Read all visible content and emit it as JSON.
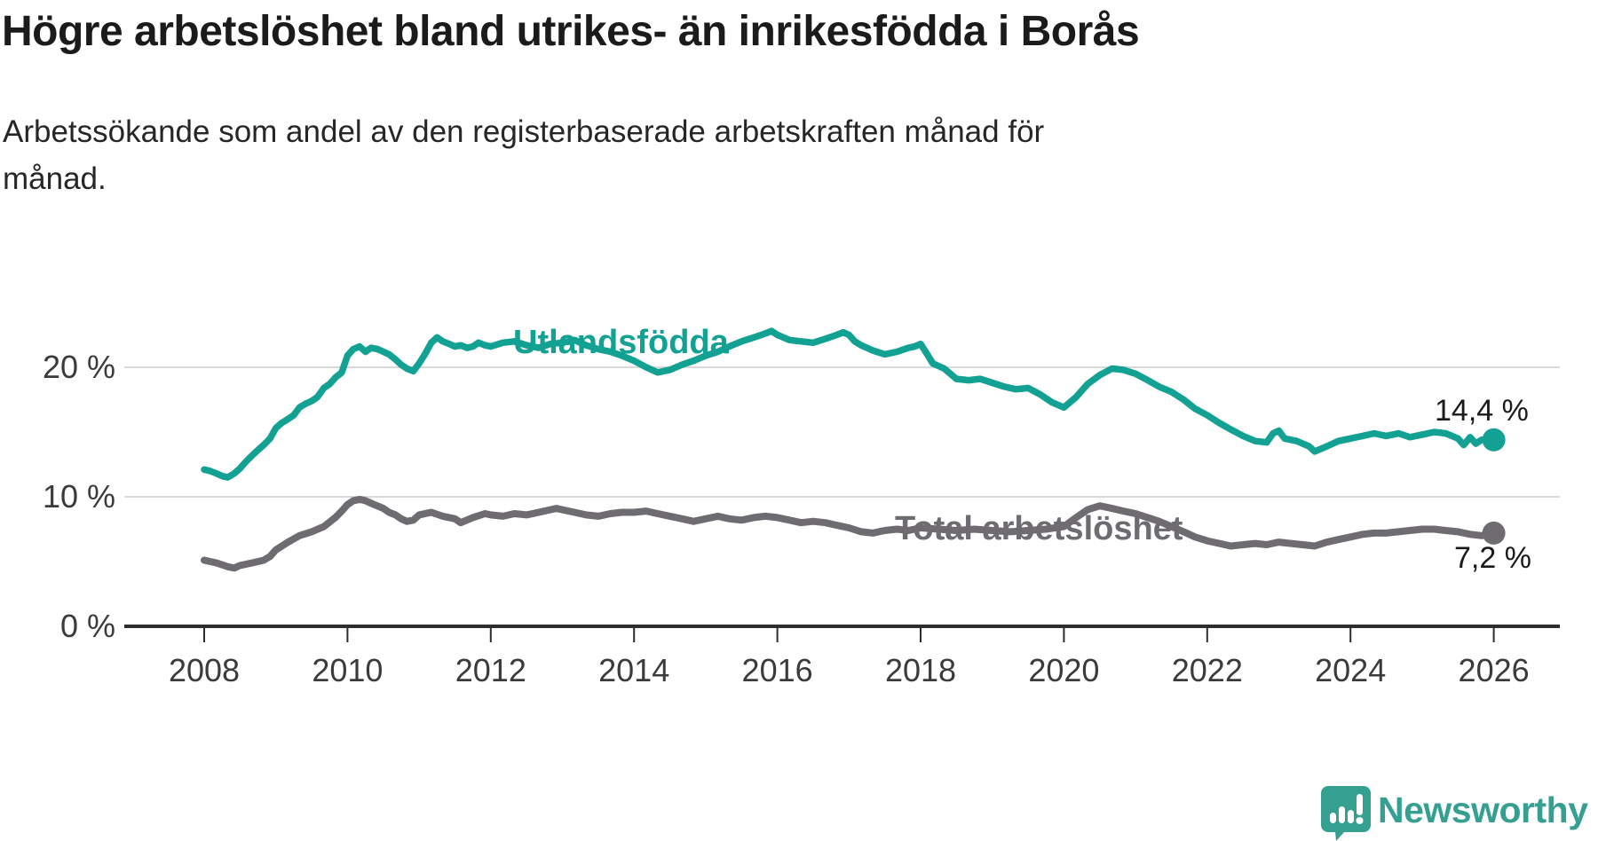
{
  "header": {
    "title": "Högre arbetslöshet bland utrikes- än inrikesfödda i Borås",
    "subtitle_lines": [
      "Arbetssökande som andel av den registerbaserade arbetskraften månad för",
      "månad."
    ]
  },
  "chart_data": {
    "type": "line",
    "title": "Högre arbetslöshet bland utrikes- än inrikesfödda i Borås",
    "subtitle": "Arbetssökande som andel av den registerbaserade arbetskraften månad för månad.",
    "xlabel": "",
    "ylabel": "",
    "grid": "horizontal",
    "legend_position": "inline-labels",
    "x_axis": {
      "range": [
        2007.6,
        2027.0
      ],
      "ticks": [
        {
          "year": 2008,
          "label": "2008"
        },
        {
          "year": 2010,
          "label": "2010"
        },
        {
          "year": 2012,
          "label": "2012"
        },
        {
          "year": 2014,
          "label": "2014"
        },
        {
          "year": 2016,
          "label": "2016"
        },
        {
          "year": 2018,
          "label": "2018"
        },
        {
          "year": 2020,
          "label": "2020"
        },
        {
          "year": 2022,
          "label": "2022"
        },
        {
          "year": 2024,
          "label": "2024"
        },
        {
          "year": 2026,
          "label": "2026"
        }
      ]
    },
    "y_axis": {
      "range": [
        0,
        24
      ],
      "unit": "%",
      "ticks": [
        {
          "value": 0,
          "label": "0 %"
        },
        {
          "value": 10,
          "label": "10 %"
        },
        {
          "value": 20,
          "label": "20 %"
        }
      ]
    },
    "colors": {
      "grid": "#d9d9d9",
      "axis": "#2d2d2d",
      "tick_text": "#3b3b3b"
    },
    "series": [
      {
        "name": "Utlandsfödda",
        "color": "#12a192",
        "end_label": "14,4 %",
        "end_value": 14.4,
        "points": [
          [
            2008.0,
            12.1
          ],
          [
            2008.08,
            12.0
          ],
          [
            2008.17,
            11.8
          ],
          [
            2008.25,
            11.6
          ],
          [
            2008.33,
            11.5
          ],
          [
            2008.42,
            11.8
          ],
          [
            2008.5,
            12.2
          ],
          [
            2008.58,
            12.7
          ],
          [
            2008.67,
            13.2
          ],
          [
            2008.75,
            13.6
          ],
          [
            2008.83,
            14.0
          ],
          [
            2008.92,
            14.5
          ],
          [
            2009.0,
            15.3
          ],
          [
            2009.08,
            15.7
          ],
          [
            2009.17,
            16.0
          ],
          [
            2009.25,
            16.3
          ],
          [
            2009.33,
            16.9
          ],
          [
            2009.42,
            17.2
          ],
          [
            2009.5,
            17.4
          ],
          [
            2009.58,
            17.7
          ],
          [
            2009.67,
            18.4
          ],
          [
            2009.75,
            18.7
          ],
          [
            2009.83,
            19.2
          ],
          [
            2009.92,
            19.6
          ],
          [
            2010.0,
            20.9
          ],
          [
            2010.08,
            21.4
          ],
          [
            2010.17,
            21.6
          ],
          [
            2010.25,
            21.2
          ],
          [
            2010.33,
            21.5
          ],
          [
            2010.42,
            21.4
          ],
          [
            2010.5,
            21.2
          ],
          [
            2010.58,
            21.0
          ],
          [
            2010.67,
            20.6
          ],
          [
            2010.75,
            20.2
          ],
          [
            2010.83,
            19.9
          ],
          [
            2010.92,
            19.7
          ],
          [
            2011.0,
            20.3
          ],
          [
            2011.08,
            21.0
          ],
          [
            2011.17,
            21.9
          ],
          [
            2011.25,
            22.3
          ],
          [
            2011.33,
            22.0
          ],
          [
            2011.42,
            21.8
          ],
          [
            2011.5,
            21.6
          ],
          [
            2011.58,
            21.7
          ],
          [
            2011.67,
            21.5
          ],
          [
            2011.75,
            21.6
          ],
          [
            2011.83,
            21.9
          ],
          [
            2011.92,
            21.7
          ],
          [
            2012.0,
            21.6
          ],
          [
            2012.17,
            21.9
          ],
          [
            2012.33,
            22.0
          ],
          [
            2012.5,
            21.7
          ],
          [
            2012.67,
            21.5
          ],
          [
            2012.83,
            21.8
          ],
          [
            2013.0,
            21.9
          ],
          [
            2013.17,
            22.1
          ],
          [
            2013.33,
            21.7
          ],
          [
            2013.5,
            21.4
          ],
          [
            2013.67,
            21.2
          ],
          [
            2013.83,
            20.9
          ],
          [
            2014.0,
            20.5
          ],
          [
            2014.17,
            20.0
          ],
          [
            2014.33,
            19.6
          ],
          [
            2014.5,
            19.8
          ],
          [
            2014.67,
            20.2
          ],
          [
            2014.83,
            20.5
          ],
          [
            2015.0,
            20.9
          ],
          [
            2015.17,
            21.2
          ],
          [
            2015.33,
            21.6
          ],
          [
            2015.5,
            22.0
          ],
          [
            2015.67,
            22.3
          ],
          [
            2015.83,
            22.6
          ],
          [
            2015.92,
            22.8
          ],
          [
            2016.0,
            22.5
          ],
          [
            2016.17,
            22.1
          ],
          [
            2016.33,
            22.0
          ],
          [
            2016.5,
            21.9
          ],
          [
            2016.67,
            22.2
          ],
          [
            2016.83,
            22.5
          ],
          [
            2016.92,
            22.7
          ],
          [
            2017.0,
            22.5
          ],
          [
            2017.08,
            22.0
          ],
          [
            2017.17,
            21.7
          ],
          [
            2017.33,
            21.3
          ],
          [
            2017.5,
            21.0
          ],
          [
            2017.67,
            21.2
          ],
          [
            2017.83,
            21.5
          ],
          [
            2017.92,
            21.6
          ],
          [
            2018.0,
            21.8
          ],
          [
            2018.08,
            21.1
          ],
          [
            2018.17,
            20.3
          ],
          [
            2018.33,
            19.9
          ],
          [
            2018.5,
            19.1
          ],
          [
            2018.67,
            19.0
          ],
          [
            2018.83,
            19.1
          ],
          [
            2019.0,
            18.8
          ],
          [
            2019.17,
            18.5
          ],
          [
            2019.33,
            18.3
          ],
          [
            2019.5,
            18.4
          ],
          [
            2019.67,
            17.9
          ],
          [
            2019.83,
            17.3
          ],
          [
            2020.0,
            16.9
          ],
          [
            2020.17,
            17.7
          ],
          [
            2020.33,
            18.7
          ],
          [
            2020.5,
            19.4
          ],
          [
            2020.67,
            19.9
          ],
          [
            2020.83,
            19.8
          ],
          [
            2021.0,
            19.5
          ],
          [
            2021.17,
            19.0
          ],
          [
            2021.33,
            18.5
          ],
          [
            2021.5,
            18.1
          ],
          [
            2021.67,
            17.5
          ],
          [
            2021.83,
            16.8
          ],
          [
            2022.0,
            16.3
          ],
          [
            2022.17,
            15.7
          ],
          [
            2022.33,
            15.2
          ],
          [
            2022.5,
            14.7
          ],
          [
            2022.67,
            14.3
          ],
          [
            2022.83,
            14.2
          ],
          [
            2022.92,
            14.9
          ],
          [
            2023.0,
            15.1
          ],
          [
            2023.08,
            14.5
          ],
          [
            2023.25,
            14.3
          ],
          [
            2023.42,
            13.9
          ],
          [
            2023.5,
            13.5
          ],
          [
            2023.67,
            13.9
          ],
          [
            2023.83,
            14.3
          ],
          [
            2024.0,
            14.5
          ],
          [
            2024.17,
            14.7
          ],
          [
            2024.33,
            14.9
          ],
          [
            2024.5,
            14.7
          ],
          [
            2024.67,
            14.9
          ],
          [
            2024.83,
            14.6
          ],
          [
            2025.0,
            14.8
          ],
          [
            2025.17,
            15.0
          ],
          [
            2025.33,
            14.9
          ],
          [
            2025.5,
            14.5
          ],
          [
            2025.58,
            14.0
          ],
          [
            2025.67,
            14.6
          ],
          [
            2025.75,
            14.1
          ],
          [
            2025.83,
            14.4
          ],
          [
            2026.0,
            14.4
          ]
        ]
      },
      {
        "name": "Total arbetslöshet",
        "color": "#6e6c71",
        "end_label": "7,2 %",
        "end_value": 7.2,
        "points": [
          [
            2008.0,
            5.1
          ],
          [
            2008.17,
            4.9
          ],
          [
            2008.33,
            4.6
          ],
          [
            2008.42,
            4.5
          ],
          [
            2008.5,
            4.7
          ],
          [
            2008.67,
            4.9
          ],
          [
            2008.83,
            5.1
          ],
          [
            2008.92,
            5.4
          ],
          [
            2009.0,
            5.9
          ],
          [
            2009.17,
            6.5
          ],
          [
            2009.33,
            7.0
          ],
          [
            2009.5,
            7.3
          ],
          [
            2009.67,
            7.7
          ],
          [
            2009.83,
            8.4
          ],
          [
            2009.92,
            8.9
          ],
          [
            2010.0,
            9.4
          ],
          [
            2010.08,
            9.7
          ],
          [
            2010.17,
            9.8
          ],
          [
            2010.25,
            9.7
          ],
          [
            2010.33,
            9.5
          ],
          [
            2010.5,
            9.1
          ],
          [
            2010.58,
            8.8
          ],
          [
            2010.67,
            8.6
          ],
          [
            2010.75,
            8.3
          ],
          [
            2010.83,
            8.1
          ],
          [
            2010.92,
            8.2
          ],
          [
            2011.0,
            8.6
          ],
          [
            2011.17,
            8.8
          ],
          [
            2011.33,
            8.5
          ],
          [
            2011.5,
            8.3
          ],
          [
            2011.58,
            8.0
          ],
          [
            2011.75,
            8.4
          ],
          [
            2011.92,
            8.7
          ],
          [
            2012.0,
            8.6
          ],
          [
            2012.17,
            8.5
          ],
          [
            2012.33,
            8.7
          ],
          [
            2012.5,
            8.6
          ],
          [
            2012.67,
            8.8
          ],
          [
            2012.83,
            9.0
          ],
          [
            2012.92,
            9.1
          ],
          [
            2013.0,
            9.0
          ],
          [
            2013.17,
            8.8
          ],
          [
            2013.33,
            8.6
          ],
          [
            2013.5,
            8.5
          ],
          [
            2013.67,
            8.7
          ],
          [
            2013.83,
            8.8
          ],
          [
            2014.0,
            8.8
          ],
          [
            2014.17,
            8.9
          ],
          [
            2014.33,
            8.7
          ],
          [
            2014.5,
            8.5
          ],
          [
            2014.67,
            8.3
          ],
          [
            2014.83,
            8.1
          ],
          [
            2015.0,
            8.3
          ],
          [
            2015.17,
            8.5
          ],
          [
            2015.33,
            8.3
          ],
          [
            2015.5,
            8.2
          ],
          [
            2015.67,
            8.4
          ],
          [
            2015.83,
            8.5
          ],
          [
            2016.0,
            8.4
          ],
          [
            2016.17,
            8.2
          ],
          [
            2016.33,
            8.0
          ],
          [
            2016.5,
            8.1
          ],
          [
            2016.67,
            8.0
          ],
          [
            2016.83,
            7.8
          ],
          [
            2017.0,
            7.6
          ],
          [
            2017.17,
            7.3
          ],
          [
            2017.33,
            7.2
          ],
          [
            2017.5,
            7.4
          ],
          [
            2017.67,
            7.5
          ],
          [
            2017.83,
            7.4
          ],
          [
            2018.0,
            7.6
          ],
          [
            2018.25,
            7.5
          ],
          [
            2018.5,
            7.4
          ],
          [
            2018.75,
            7.5
          ],
          [
            2019.0,
            7.4
          ],
          [
            2019.25,
            7.3
          ],
          [
            2019.5,
            7.4
          ],
          [
            2019.75,
            7.5
          ],
          [
            2020.0,
            7.7
          ],
          [
            2020.17,
            8.4
          ],
          [
            2020.33,
            9.0
          ],
          [
            2020.5,
            9.3
          ],
          [
            2020.67,
            9.1
          ],
          [
            2020.83,
            8.9
          ],
          [
            2021.0,
            8.7
          ],
          [
            2021.17,
            8.4
          ],
          [
            2021.33,
            8.1
          ],
          [
            2021.5,
            7.7
          ],
          [
            2021.67,
            7.3
          ],
          [
            2021.83,
            6.9
          ],
          [
            2022.0,
            6.6
          ],
          [
            2022.17,
            6.4
          ],
          [
            2022.33,
            6.2
          ],
          [
            2022.5,
            6.3
          ],
          [
            2022.67,
            6.4
          ],
          [
            2022.83,
            6.3
          ],
          [
            2023.0,
            6.5
          ],
          [
            2023.17,
            6.4
          ],
          [
            2023.33,
            6.3
          ],
          [
            2023.5,
            6.2
          ],
          [
            2023.67,
            6.5
          ],
          [
            2023.83,
            6.7
          ],
          [
            2024.0,
            6.9
          ],
          [
            2024.17,
            7.1
          ],
          [
            2024.33,
            7.2
          ],
          [
            2024.5,
            7.2
          ],
          [
            2024.67,
            7.3
          ],
          [
            2024.83,
            7.4
          ],
          [
            2025.0,
            7.5
          ],
          [
            2025.17,
            7.5
          ],
          [
            2025.33,
            7.4
          ],
          [
            2025.5,
            7.3
          ],
          [
            2025.67,
            7.1
          ],
          [
            2025.83,
            7.0
          ],
          [
            2026.0,
            7.2
          ]
        ]
      }
    ]
  },
  "footer": {
    "brand": "Newsworthy",
    "brand_color": "#35a092",
    "logo_icon": "speech-bubble-bar-chart-exclamation"
  }
}
